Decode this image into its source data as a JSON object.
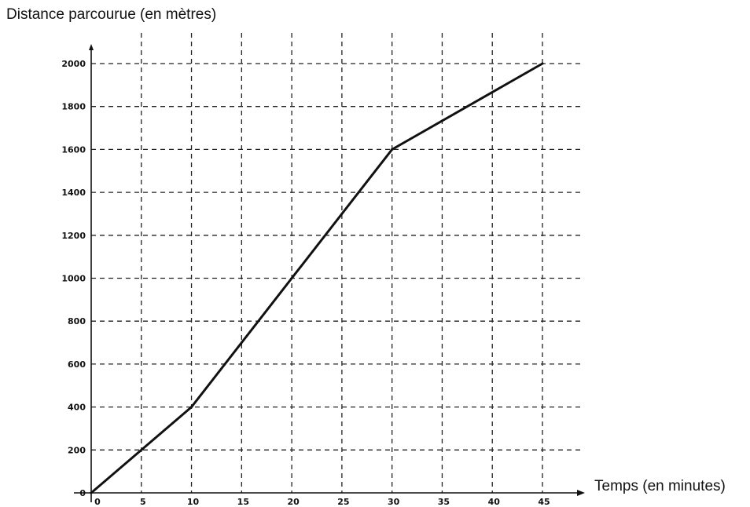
{
  "chart_data": {
    "type": "line",
    "ylabel": "Distance parcourue (en mètres)",
    "xlabel": "Temps (en minutes)",
    "x_ticks": [
      0,
      5,
      10,
      15,
      20,
      25,
      30,
      35,
      40,
      45
    ],
    "y_ticks": [
      0,
      200,
      400,
      600,
      800,
      1000,
      1200,
      1400,
      1600,
      1800,
      2000
    ],
    "xlim": [
      0,
      45
    ],
    "ylim": [
      0,
      2000
    ],
    "grid": true,
    "series": [
      {
        "points": [
          {
            "x": 0,
            "y": 0
          },
          {
            "x": 10,
            "y": 400
          },
          {
            "x": 30,
            "y": 1600
          },
          {
            "x": 45,
            "y": 2000
          }
        ]
      }
    ]
  }
}
